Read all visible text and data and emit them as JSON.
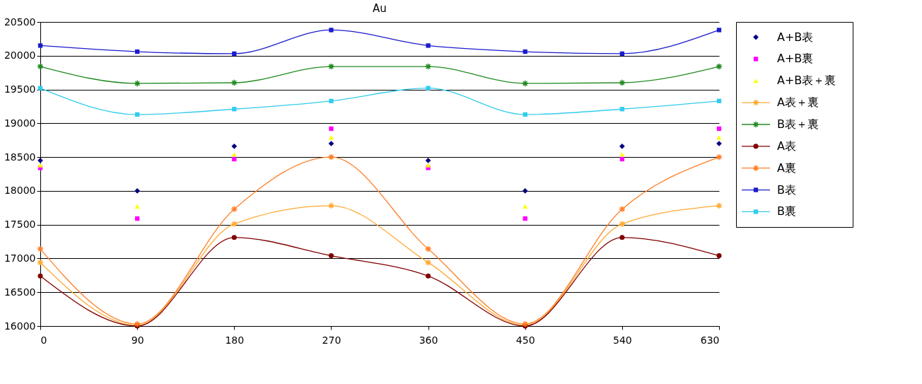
{
  "chart_data": {
    "type": "line",
    "title": "Au",
    "x": [
      0,
      90,
      180,
      270,
      360,
      450,
      540,
      630
    ],
    "xlim": [
      0,
      630
    ],
    "xticks": [
      0,
      90,
      180,
      270,
      360,
      450,
      540,
      630
    ],
    "ylim": [
      16000,
      20500
    ],
    "yticks": [
      16000,
      16500,
      17000,
      17500,
      18000,
      18500,
      19000,
      19500,
      20000,
      20500
    ],
    "grid": "y",
    "legend": "right",
    "series": [
      {
        "name": "A+B表",
        "type": "scatter",
        "marker": "diamond",
        "color": "#000080",
        "values": [
          18450,
          18000,
          18660,
          18700,
          18450,
          18000,
          18660,
          18700
        ]
      },
      {
        "name": "A+B裏",
        "type": "scatter",
        "marker": "square",
        "color": "#ff00ff",
        "values": [
          18340,
          17590,
          18470,
          18920,
          18340,
          17590,
          18470,
          18920
        ]
      },
      {
        "name": "A+B表＋裏",
        "type": "scatter",
        "marker": "triangle",
        "color": "#ffff00",
        "values": [
          18380,
          17770,
          18540,
          18790,
          18380,
          17770,
          18540,
          18790
        ]
      },
      {
        "name": "A表＋裏",
        "type": "line",
        "marker": "cross",
        "color": "#ffaa33",
        "values": [
          16940,
          16010,
          17510,
          17780,
          16940,
          16010,
          17510,
          17780
        ]
      },
      {
        "name": "B表＋裏",
        "type": "line",
        "marker": "cross",
        "color": "#228b22",
        "values": [
          19840,
          19590,
          19600,
          19840,
          19840,
          19590,
          19600,
          19840
        ]
      },
      {
        "name": "A表",
        "type": "line",
        "marker": "circle",
        "color": "#800000",
        "values": [
          16740,
          16000,
          17310,
          17040,
          16740,
          16000,
          17310,
          17040
        ]
      },
      {
        "name": "A裏",
        "type": "line",
        "marker": "cross",
        "color": "#ff7f27",
        "values": [
          17140,
          16030,
          17730,
          18500,
          17140,
          16030,
          17730,
          18500
        ]
      },
      {
        "name": "B表",
        "type": "line",
        "marker": "square",
        "color": "#1c1ccc",
        "values": [
          20150,
          20060,
          20030,
          20380,
          20150,
          20060,
          20030,
          20380
        ]
      },
      {
        "name": "B裏",
        "type": "line",
        "marker": "square",
        "color": "#33ccee",
        "values": [
          19520,
          19130,
          19210,
          19330,
          19520,
          19130,
          19210,
          19330
        ]
      }
    ]
  }
}
